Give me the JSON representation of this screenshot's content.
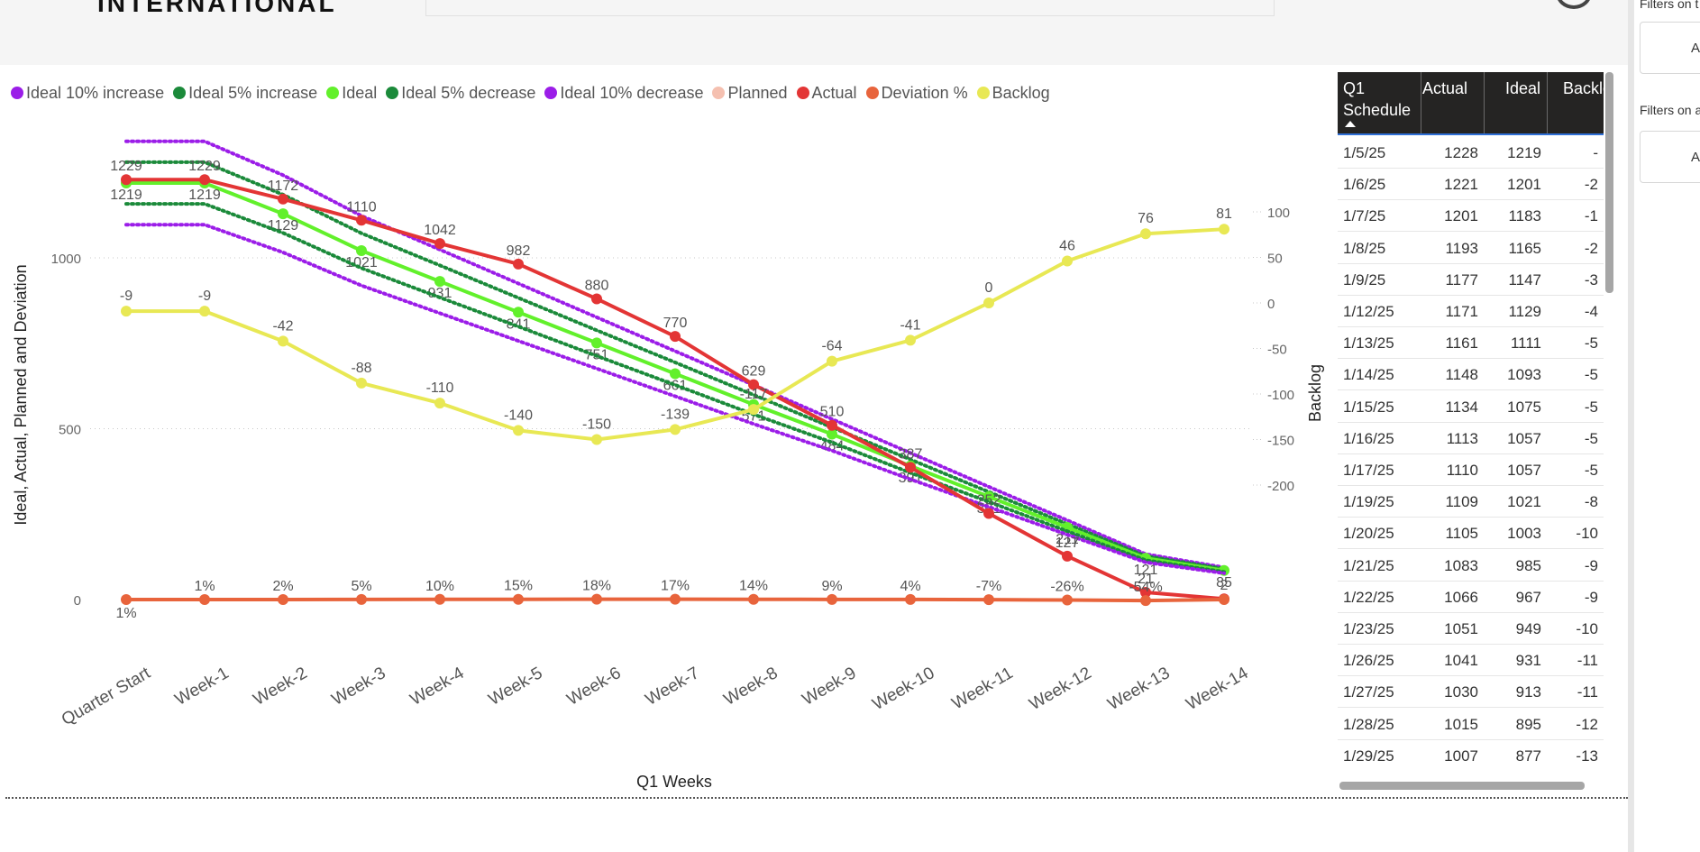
{
  "header": {
    "logo_text": "INTERNATIONAL"
  },
  "filters": {
    "on_page_label": "Filters on t",
    "on_page_button": "Ad",
    "on_all_label": "Filters on a",
    "on_all_button": "Ad"
  },
  "colors": {
    "ideal_10": "#9b1de8",
    "ideal_5": "#1b8a3a",
    "ideal": "#62f02b",
    "planned": "#f5c0b0",
    "actual": "#e33535",
    "deviation": "#e8643c",
    "backlog": "#e8e854"
  },
  "chart_data": {
    "type": "line",
    "x_axis_title": "Q1 Weeks",
    "y_axis_title": "Ideal, Actual, Planned and Deviation",
    "y2_axis_title": "Backlog",
    "categories": [
      "Quarter Start",
      "Week-1",
      "Week-2",
      "Week-3",
      "Week-4",
      "Week-5",
      "Week-6",
      "Week-7",
      "Week-8",
      "Week-9",
      "Week-10",
      "Week-11",
      "Week-12",
      "Week-13",
      "Week-14"
    ],
    "y_ticks": [
      "0",
      "500",
      "1000"
    ],
    "y_range": [
      0,
      1400
    ],
    "y2_ticks": [
      "100",
      "50",
      "0",
      "-50",
      "-100",
      "-150",
      "-200"
    ],
    "y2_range": [
      -200,
      100
    ],
    "legend": [
      "Ideal 10% increase",
      "Ideal 5% increase",
      "Ideal",
      "Ideal 5% decrease",
      "Ideal 10% decrease",
      "Planned",
      "Actual",
      "Deviation %",
      "Backlog"
    ],
    "series": [
      {
        "name": "Ideal 10% increase",
        "style": "dotted",
        "values": [
          1341,
          1341,
          1242,
          1123,
          1024,
          925,
          826,
          727,
          628,
          528,
          429,
          330,
          232,
          133,
          94
        ]
      },
      {
        "name": "Ideal 5% increase",
        "style": "dotted",
        "values": [
          1280,
          1280,
          1185,
          1072,
          978,
          883,
          788,
          694,
          599,
          504,
          410,
          315,
          221,
          127,
          90
        ]
      },
      {
        "name": "Ideal",
        "style": "solid-markers",
        "labels": [
          "1219",
          "1219",
          "1129",
          "1021",
          "931",
          "841",
          "751",
          "661",
          "571",
          "484",
          "391",
          "301",
          "211",
          "121",
          "85"
        ],
        "values": [
          1219,
          1219,
          1129,
          1021,
          931,
          841,
          751,
          661,
          571,
          484,
          391,
          301,
          211,
          121,
          85
        ]
      },
      {
        "name": "Ideal 5% decrease",
        "style": "dotted",
        "values": [
          1158,
          1158,
          1073,
          970,
          884,
          799,
          713,
          628,
          542,
          460,
          371,
          286,
          200,
          115,
          81
        ]
      },
      {
        "name": "Ideal 10% decrease",
        "style": "dotted",
        "values": [
          1097,
          1097,
          1016,
          919,
          838,
          757,
          676,
          595,
          514,
          436,
          352,
          271,
          190,
          109,
          77
        ]
      },
      {
        "name": "Actual",
        "style": "solid-markers",
        "labels": [
          "1229",
          "1229",
          "1172",
          "1110",
          "1042",
          "982",
          "880",
          "770",
          "629",
          "510",
          "387",
          "252",
          "127",
          "21",
          "2"
        ],
        "values": [
          1229,
          1229,
          1172,
          1110,
          1042,
          982,
          880,
          770,
          629,
          510,
          387,
          252,
          127,
          21,
          2
        ]
      },
      {
        "name": "Deviation %",
        "style": "solid-markers",
        "labels": [
          "1%",
          "1%",
          "2%",
          "5%",
          "10%",
          "15%",
          "18%",
          "17%",
          "14%",
          "9%",
          "4%",
          "-7%",
          "-26%",
          "-54%",
          ""
        ],
        "values": [
          1,
          1,
          2,
          5,
          10,
          15,
          18,
          17,
          14,
          9,
          4,
          -7,
          -26,
          -54,
          0
        ]
      },
      {
        "name": "Backlog",
        "axis": "y2",
        "style": "solid-markers",
        "labels": [
          "-9",
          "-9",
          "-42",
          "-88",
          "-110",
          "-140",
          "-150",
          "-139",
          "-117",
          "-64",
          "-41",
          "0",
          "46",
          "76",
          "81"
        ],
        "values": [
          -9,
          -9,
          -42,
          -88,
          -110,
          -140,
          -150,
          -139,
          -117,
          -64,
          -41,
          0,
          46,
          76,
          81
        ]
      }
    ]
  },
  "table": {
    "headers": [
      "Q1 Schedule",
      "Actual",
      "Ideal",
      "Backlo"
    ],
    "rows": [
      [
        "1/5/25",
        "1228",
        "1219",
        "-"
      ],
      [
        "1/6/25",
        "1221",
        "1201",
        "-2"
      ],
      [
        "1/7/25",
        "1201",
        "1183",
        "-1"
      ],
      [
        "1/8/25",
        "1193",
        "1165",
        "-2"
      ],
      [
        "1/9/25",
        "1177",
        "1147",
        "-3"
      ],
      [
        "1/12/25",
        "1171",
        "1129",
        "-4"
      ],
      [
        "1/13/25",
        "1161",
        "1111",
        "-5"
      ],
      [
        "1/14/25",
        "1148",
        "1093",
        "-5"
      ],
      [
        "1/15/25",
        "1134",
        "1075",
        "-5"
      ],
      [
        "1/16/25",
        "1113",
        "1057",
        "-5"
      ],
      [
        "1/17/25",
        "1110",
        "1057",
        "-5"
      ],
      [
        "1/19/25",
        "1109",
        "1021",
        "-8"
      ],
      [
        "1/20/25",
        "1105",
        "1003",
        "-10"
      ],
      [
        "1/21/25",
        "1083",
        "985",
        "-9"
      ],
      [
        "1/22/25",
        "1066",
        "967",
        "-9"
      ],
      [
        "1/23/25",
        "1051",
        "949",
        "-10"
      ],
      [
        "1/26/25",
        "1041",
        "931",
        "-11"
      ],
      [
        "1/27/25",
        "1030",
        "913",
        "-11"
      ],
      [
        "1/28/25",
        "1015",
        "895",
        "-12"
      ],
      [
        "1/29/25",
        "1007",
        "877",
        "-13"
      ]
    ]
  }
}
